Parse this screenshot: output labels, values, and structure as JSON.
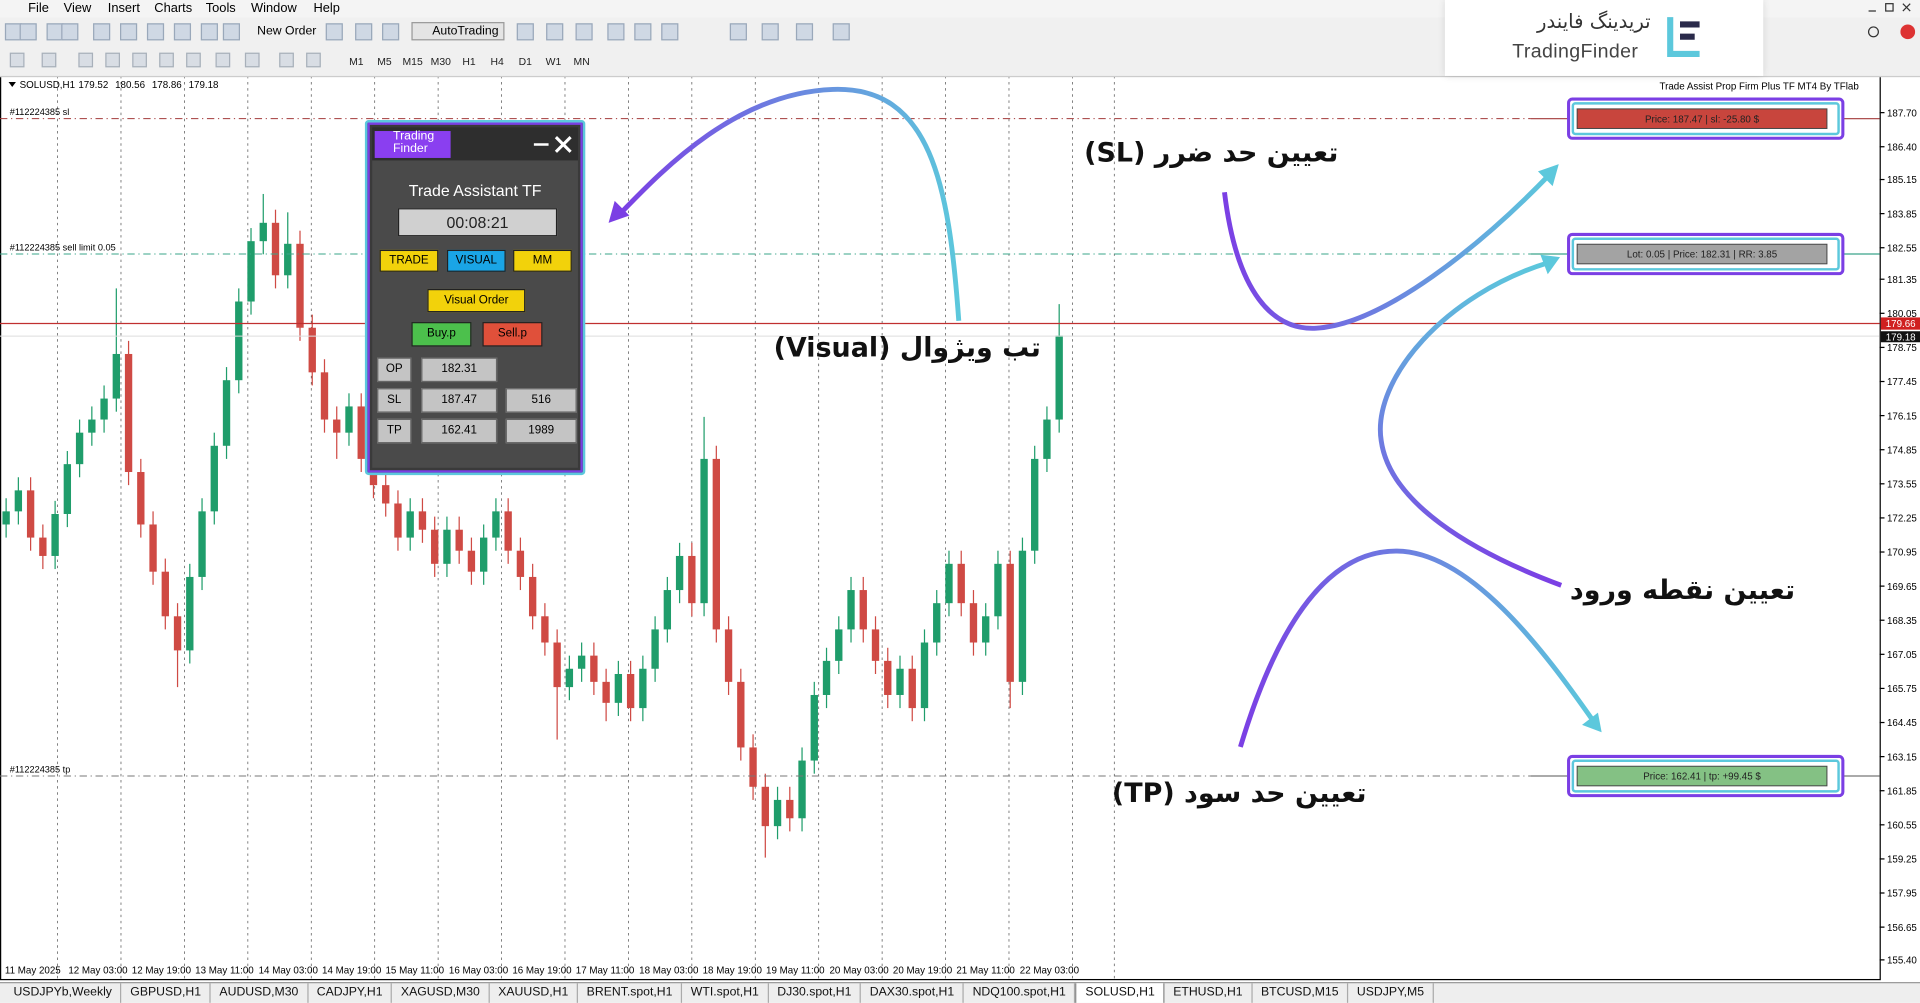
{
  "menu": [
    "File",
    "View",
    "Insert",
    "Charts",
    "Tools",
    "Window",
    "Help"
  ],
  "toolbar": {
    "new_order": "New Order",
    "autotrading": "AutoTrading",
    "timeframes": [
      "M1",
      "M5",
      "M15",
      "M30",
      "H1",
      "H4",
      "D1",
      "W1",
      "MN"
    ]
  },
  "logo": {
    "persian": "تریدینگ فایندر",
    "latin": "TradingFinder"
  },
  "chart_data": {
    "type": "candlestick",
    "symbol": "SOLUSD,H1",
    "ohlc": [
      179.52,
      180.56,
      178.86,
      179.18
    ],
    "indicator": "Trade Assist Prop Firm Plus TF MT4 By TFlab",
    "up_color": "#1f9d6b",
    "down_color": "#cf4a44",
    "ylim": [
      154.65,
      189.1
    ],
    "yticks": [
      {
        "value": 187.7,
        "label": "187.70"
      },
      {
        "value": 186.4,
        "label": "186.40"
      },
      {
        "value": 185.15,
        "label": "185.15"
      },
      {
        "value": 183.85,
        "label": "183.85"
      },
      {
        "value": 182.55,
        "label": "182.55"
      },
      {
        "value": 181.35,
        "label": "181.35"
      },
      {
        "value": 180.05,
        "label": "180.05"
      },
      {
        "value": 178.75,
        "label": "178.75"
      },
      {
        "value": 177.45,
        "label": "177.45"
      },
      {
        "value": 176.15,
        "label": "176.15"
      },
      {
        "value": 174.85,
        "label": "174.85"
      },
      {
        "value": 173.55,
        "label": "173.55"
      },
      {
        "value": 172.25,
        "label": "172.25"
      },
      {
        "value": 170.95,
        "label": "170.95"
      },
      {
        "value": 169.65,
        "label": "169.65"
      },
      {
        "value": 168.35,
        "label": "168.35"
      },
      {
        "value": 167.05,
        "label": "167.05"
      },
      {
        "value": 165.75,
        "label": "165.75"
      },
      {
        "value": 164.45,
        "label": "164.45"
      },
      {
        "value": 163.15,
        "label": "163.15"
      },
      {
        "value": 161.85,
        "label": "161.85"
      },
      {
        "value": 160.55,
        "label": "160.55"
      },
      {
        "value": 159.25,
        "label": "159.25"
      },
      {
        "value": 157.95,
        "label": "157.95"
      },
      {
        "value": 156.65,
        "label": "156.65"
      },
      {
        "value": 155.4,
        "label": "155.40"
      }
    ],
    "x_labels": [
      "11 May 2025",
      "12 May 03:00",
      "12 May 19:00",
      "13 May 11:00",
      "14 May 03:00",
      "14 May 19:00",
      "15 May 11:00",
      "16 May 03:00",
      "16 May 19:00",
      "17 May 11:00",
      "18 May 03:00",
      "18 May 19:00",
      "19 May 11:00",
      "20 May 03:00",
      "20 May 19:00",
      "21 May 11:00",
      "22 May 03:00"
    ],
    "candles": [
      [
        172.0,
        173.0,
        171.5,
        172.5
      ],
      [
        172.5,
        173.8,
        172.0,
        173.3
      ],
      [
        173.3,
        173.8,
        171.0,
        171.5
      ],
      [
        171.5,
        172.0,
        170.3,
        170.8
      ],
      [
        170.8,
        172.9,
        170.3,
        172.4
      ],
      [
        172.4,
        174.8,
        171.9,
        174.3
      ],
      [
        174.3,
        176.0,
        173.8,
        175.5
      ],
      [
        175.5,
        176.5,
        175.0,
        176.0
      ],
      [
        176.0,
        177.3,
        175.5,
        176.8
      ],
      [
        176.8,
        181.0,
        176.3,
        178.5
      ],
      [
        178.5,
        179.0,
        173.5,
        174.0
      ],
      [
        174.0,
        174.5,
        171.5,
        172.0
      ],
      [
        172.0,
        172.5,
        169.7,
        170.2
      ],
      [
        170.2,
        170.7,
        168.0,
        168.5
      ],
      [
        168.5,
        169.0,
        165.8,
        167.2
      ],
      [
        167.2,
        170.5,
        166.7,
        170.0
      ],
      [
        170.0,
        173.0,
        169.5,
        172.5
      ],
      [
        172.5,
        175.5,
        172.0,
        175.0
      ],
      [
        175.0,
        178.0,
        174.5,
        177.5
      ],
      [
        177.5,
        181.0,
        177.0,
        180.5
      ],
      [
        180.5,
        183.3,
        180.0,
        182.8
      ],
      [
        182.8,
        184.6,
        182.3,
        183.5
      ],
      [
        183.5,
        184.0,
        181.0,
        181.5
      ],
      [
        181.5,
        183.9,
        181.0,
        182.7
      ],
      [
        182.7,
        183.2,
        179.0,
        179.5
      ],
      [
        179.5,
        180.0,
        177.3,
        177.8
      ],
      [
        177.8,
        178.3,
        175.5,
        176.0
      ],
      [
        176.0,
        176.5,
        174.5,
        175.5
      ],
      [
        175.5,
        177.0,
        175.0,
        176.5
      ],
      [
        176.5,
        177.0,
        174.0,
        174.5
      ],
      [
        174.5,
        175.0,
        173.0,
        173.5
      ],
      [
        173.5,
        174.0,
        172.3,
        172.8
      ],
      [
        172.8,
        173.3,
        171.0,
        171.5
      ],
      [
        171.5,
        173.0,
        171.0,
        172.5
      ],
      [
        172.5,
        173.0,
        171.3,
        171.8
      ],
      [
        171.8,
        172.3,
        170.0,
        170.5
      ],
      [
        170.5,
        172.3,
        170.0,
        171.8
      ],
      [
        171.8,
        172.3,
        170.5,
        171.0
      ],
      [
        171.0,
        171.5,
        169.7,
        170.2
      ],
      [
        170.2,
        172.0,
        169.7,
        171.5
      ],
      [
        171.5,
        173.0,
        171.0,
        172.5
      ],
      [
        172.5,
        173.0,
        170.5,
        171.0
      ],
      [
        171.0,
        171.5,
        169.5,
        170.0
      ],
      [
        170.0,
        170.5,
        168.0,
        168.5
      ],
      [
        168.5,
        169.0,
        167.0,
        167.5
      ],
      [
        167.5,
        168.0,
        163.8,
        165.8
      ],
      [
        165.8,
        167.0,
        165.3,
        166.5
      ],
      [
        166.5,
        167.5,
        166.0,
        167.0
      ],
      [
        167.0,
        167.5,
        165.5,
        166.0
      ],
      [
        166.0,
        166.5,
        164.5,
        165.2
      ],
      [
        165.2,
        166.8,
        164.7,
        166.3
      ],
      [
        166.3,
        166.8,
        164.5,
        165.0
      ],
      [
        165.0,
        167.0,
        164.5,
        166.5
      ],
      [
        166.5,
        168.5,
        166.0,
        168.0
      ],
      [
        168.0,
        170.0,
        167.5,
        169.5
      ],
      [
        169.5,
        171.3,
        169.0,
        170.8
      ],
      [
        170.8,
        171.3,
        168.5,
        169.0
      ],
      [
        169.0,
        176.1,
        168.5,
        174.5
      ],
      [
        174.5,
        175.0,
        167.5,
        168.0
      ],
      [
        168.0,
        168.5,
        165.5,
        166.0
      ],
      [
        166.0,
        166.5,
        163.0,
        163.5
      ],
      [
        163.5,
        164.0,
        161.5,
        162.0
      ],
      [
        162.0,
        162.5,
        159.3,
        160.5
      ],
      [
        160.5,
        162.0,
        160.0,
        161.5
      ],
      [
        161.5,
        162.0,
        160.3,
        160.8
      ],
      [
        160.8,
        163.5,
        160.3,
        163.0
      ],
      [
        163.0,
        166.0,
        162.5,
        165.5
      ],
      [
        165.5,
        167.3,
        165.0,
        166.8
      ],
      [
        166.8,
        168.5,
        166.3,
        168.0
      ],
      [
        168.0,
        170.0,
        167.5,
        169.5
      ],
      [
        169.5,
        170.0,
        167.5,
        168.0
      ],
      [
        168.0,
        168.5,
        166.3,
        166.8
      ],
      [
        166.8,
        167.3,
        165.0,
        165.5
      ],
      [
        165.5,
        167.0,
        165.0,
        166.5
      ],
      [
        166.5,
        167.0,
        164.5,
        165.0
      ],
      [
        165.0,
        168.0,
        164.5,
        167.5
      ],
      [
        167.5,
        169.5,
        167.0,
        169.0
      ],
      [
        169.0,
        171.0,
        168.5,
        170.5
      ],
      [
        170.5,
        171.0,
        168.5,
        169.0
      ],
      [
        169.0,
        169.5,
        167.0,
        167.5
      ],
      [
        167.5,
        169.0,
        167.0,
        168.5
      ],
      [
        168.5,
        171.0,
        168.0,
        170.5
      ],
      [
        170.5,
        171.0,
        165.0,
        166.0
      ],
      [
        166.0,
        171.5,
        165.5,
        171.0
      ],
      [
        171.0,
        175.0,
        170.5,
        174.5
      ],
      [
        174.5,
        176.5,
        174.0,
        176.0
      ],
      [
        176.0,
        180.4,
        175.5,
        179.2
      ]
    ],
    "levels": [
      {
        "label": "#112224385 sl",
        "value": 187.47,
        "color": "#a33a3a"
      },
      {
        "label": "#112224385 sell limit 0.05",
        "value": 182.31,
        "color": "#3aa58a"
      },
      {
        "label": "#112224385 tp",
        "value": 162.41,
        "color": "#777777"
      }
    ],
    "bid": 179.66,
    "last": 179.18,
    "trade_boxes": [
      {
        "text": "Price: 187.47 | sl: -25.80 $",
        "color": "#c8453d"
      },
      {
        "text": "Lot: 0.05 | Price: 182.31 | RR: 3.85",
        "color": "#a3a3a3"
      },
      {
        "text": "Price: 162.41 | tp: +99.45 $",
        "color": "#84c184"
      }
    ]
  },
  "panel": {
    "logo_lines": [
      "Trading",
      "Finder"
    ],
    "title": "Trade Assistant TF",
    "timer": "00:08:21",
    "tabs": [
      "TRADE",
      "VISUAL",
      "MM"
    ],
    "visual_order": "Visual Order",
    "buy": "Buy.p",
    "sell": "Sell.p",
    "rows": [
      [
        "OP",
        "182.31"
      ],
      [
        "SL",
        "187.47",
        "516"
      ],
      [
        "TP",
        "162.41",
        "1989"
      ]
    ]
  },
  "annotations": [
    "تب ویژوال (Visual)",
    "تعیین حد ضرر (SL)",
    "تعیین نقطه ورود",
    "تعیین حد سود (TP)"
  ],
  "tabs": [
    {
      "label": "USDJPYb,Weekly"
    },
    {
      "label": "GBPUSD,H1"
    },
    {
      "label": "AUDUSD,M30"
    },
    {
      "label": "CADJPY,H1"
    },
    {
      "label": "XAGUSD,M30"
    },
    {
      "label": "XAUUSD,H1"
    },
    {
      "label": "BRENT.spot,H1"
    },
    {
      "label": "WTI.spot,H1"
    },
    {
      "label": "DJ30.spot,H1"
    },
    {
      "label": "DAX30.spot,H1"
    },
    {
      "label": "NDQ100.spot,H1"
    },
    {
      "label": "SOLUSD,H1",
      "active": true
    },
    {
      "label": "ETHUSD,H1"
    },
    {
      "label": "BTCUSD,M15"
    },
    {
      "label": "USDJPY,M5"
    }
  ]
}
